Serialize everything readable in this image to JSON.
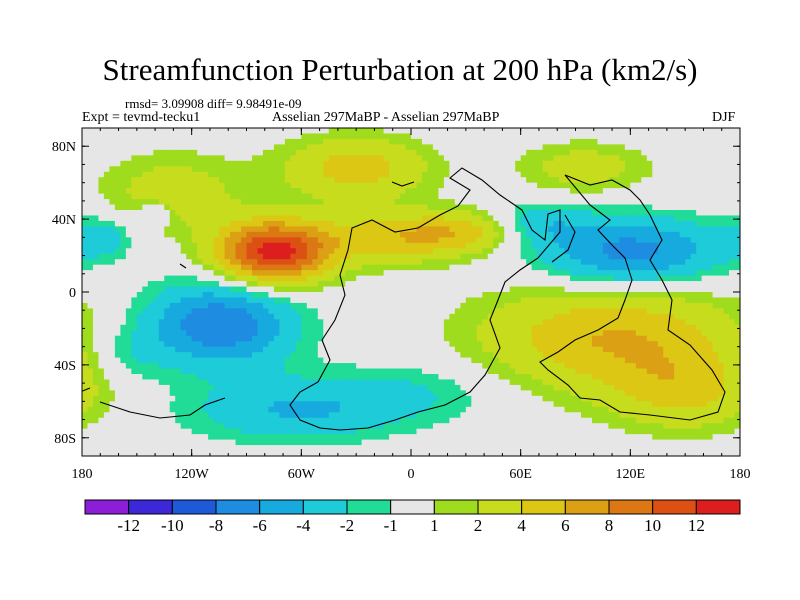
{
  "chart_data": {
    "type": "heatmap",
    "title": "Streamfunction Perturbation at 200 hPa (km2/s)",
    "stats": "rmsd= 3.09908 diff= 9.98491e-09",
    "left_label": "Expt = tevmd-tecku1",
    "center_label": "Asselian 297MaBP - Asselian 297MaBP",
    "right_label": "DJF",
    "x_ticks": [
      {
        "value": -180,
        "label": "180"
      },
      {
        "value": -120,
        "label": "120W"
      },
      {
        "value": -60,
        "label": "60W"
      },
      {
        "value": 0,
        "label": "0"
      },
      {
        "value": 60,
        "label": "60E"
      },
      {
        "value": 120,
        "label": "120E"
      },
      {
        "value": 180,
        "label": "180"
      }
    ],
    "y_ticks": [
      {
        "value": 80,
        "label": "80N"
      },
      {
        "value": 40,
        "label": "40N"
      },
      {
        "value": 0,
        "label": "0"
      },
      {
        "value": -40,
        "label": "40S"
      },
      {
        "value": -80,
        "label": "80S"
      }
    ],
    "xlim": [
      -180,
      180
    ],
    "ylim": [
      -90,
      90
    ],
    "colorbar": {
      "colors": [
        "#8c1ed8",
        "#3c28d8",
        "#1e5ad8",
        "#1e8ce0",
        "#16aade",
        "#1ecbd8",
        "#20dc96",
        "#e6e6e6",
        "#a0dc1e",
        "#c8dc1e",
        "#dcc814",
        "#dca014",
        "#dc7814",
        "#dc5014",
        "#dc1e1e"
      ],
      "labels": [
        "-12",
        "-10",
        "-8",
        "-6",
        "-4",
        "-2",
        "-1",
        "1",
        "2",
        "4",
        "6",
        "8",
        "10",
        "12"
      ]
    },
    "anomalies": [
      {
        "lon": -75,
        "lat": 22,
        "amp": 13,
        "slon": 22,
        "slat": 12
      },
      {
        "lon": -10,
        "lat": 30,
        "amp": 5,
        "slon": 28,
        "slat": 10
      },
      {
        "lon": -30,
        "lat": 68,
        "amp": 5,
        "slon": 28,
        "slat": 12
      },
      {
        "lon": 30,
        "lat": 33,
        "amp": 4,
        "slon": 22,
        "slat": 8
      },
      {
        "lon": 95,
        "lat": 68,
        "amp": 3,
        "slon": 25,
        "slat": 10
      },
      {
        "lon": 120,
        "lat": 22,
        "amp": -7,
        "slon": 35,
        "slat": 13
      },
      {
        "lon": 70,
        "lat": 38,
        "amp": -3,
        "slon": 18,
        "slat": 8
      },
      {
        "lon": -170,
        "lat": 30,
        "amp": -3,
        "slon": 12,
        "slat": 8
      },
      {
        "lon": -130,
        "lat": 55,
        "amp": 3,
        "slon": 28,
        "slat": 15
      },
      {
        "lon": -140,
        "lat": 43,
        "amp": -3,
        "slon": 6,
        "slat": 4
      },
      {
        "lon": -105,
        "lat": -18,
        "amp": -8,
        "slon": 28,
        "slat": 16
      },
      {
        "lon": -65,
        "lat": -65,
        "amp": -4,
        "slon": 40,
        "slat": 12
      },
      {
        "lon": 0,
        "lat": -55,
        "amp": -2,
        "slon": 35,
        "slat": 12
      },
      {
        "lon": 110,
        "lat": -25,
        "amp": 6,
        "slon": 50,
        "slat": 20
      },
      {
        "lon": 150,
        "lat": -55,
        "amp": 4,
        "slon": 30,
        "slat": 15
      },
      {
        "lon": -155,
        "lat": -35,
        "amp": -2,
        "slon": 15,
        "slat": 12
      }
    ]
  }
}
